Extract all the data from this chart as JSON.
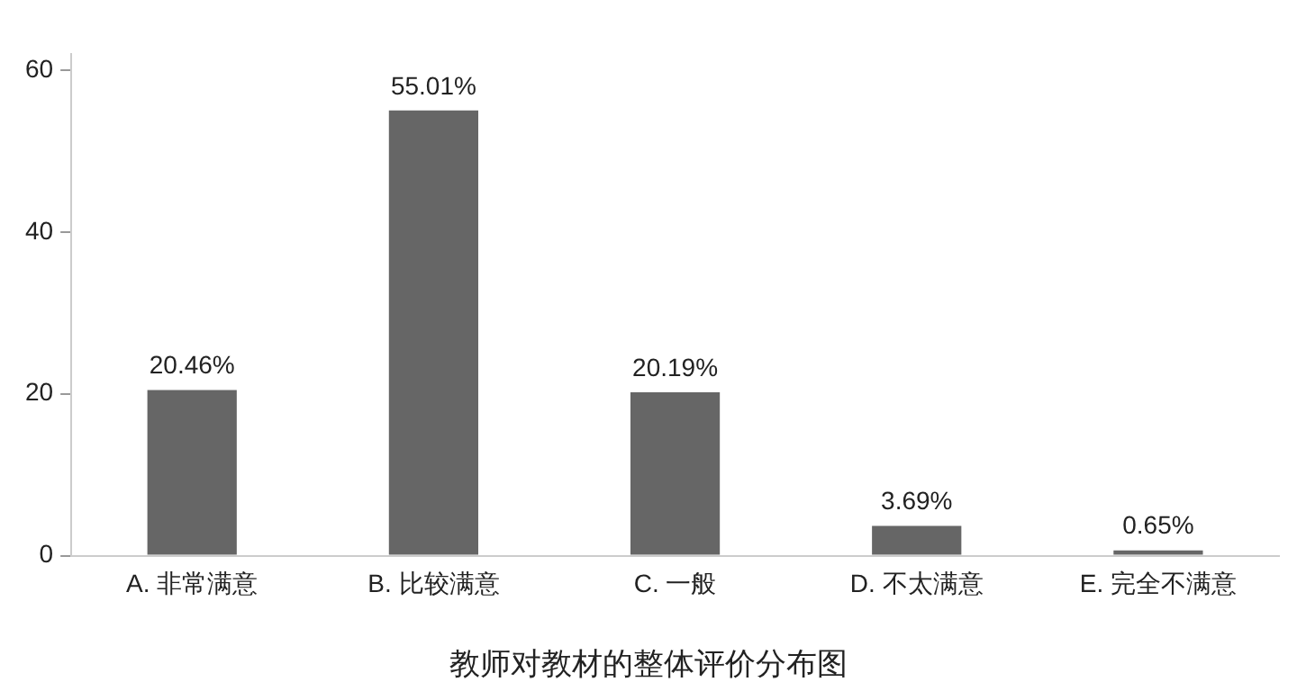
{
  "chart_data": {
    "type": "bar",
    "title": "教师对教材的整体评价分布图",
    "categories": [
      "A. 非常满意",
      "B. 比较满意",
      "C. 一般",
      "D. 不太满意",
      "E. 完全不满意"
    ],
    "values": [
      20.46,
      55.01,
      20.19,
      3.69,
      0.65
    ],
    "value_labels": [
      "20.46%",
      "55.01%",
      "20.19%",
      "3.69%",
      "0.65%"
    ],
    "color": "#666666",
    "ylim": [
      0,
      62
    ],
    "yticks": [
      0,
      20,
      40,
      60
    ],
    "grid": false,
    "legend": false
  }
}
